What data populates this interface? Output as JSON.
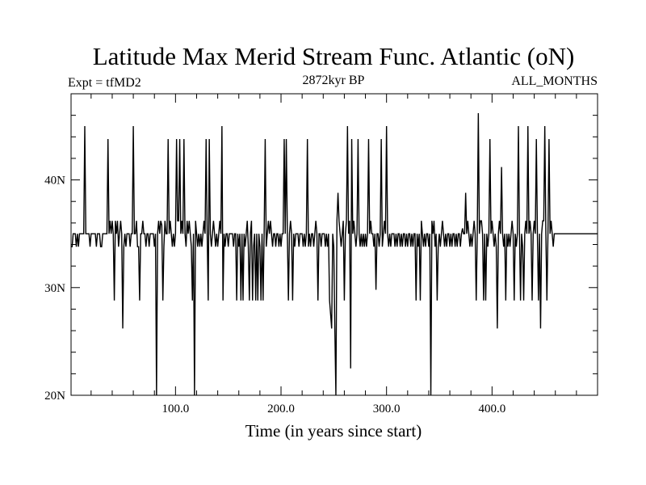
{
  "chart_data": {
    "type": "line",
    "title": "Latitude Max Merid Stream Func. Atlantic (oN)",
    "subtitle_left": "Expt = tfMD2",
    "subtitle_center": "2872kyr BP",
    "subtitle_right": "ALL_MONTHS",
    "xlabel": "Time (in years since start)",
    "ylabel": "",
    "xlim": [
      1,
      500
    ],
    "ylim": [
      20,
      48
    ],
    "x_ticks": [
      100,
      200,
      300,
      400
    ],
    "x_tick_labels": [
      "100.0",
      "200.0",
      "300.0",
      "400.0"
    ],
    "y_ticks": [
      20,
      30,
      40
    ],
    "y_tick_labels": [
      "20N",
      "30N",
      "40N"
    ],
    "line_color": "#000000",
    "grid": false,
    "series": [
      {
        "x_start": 1,
        "x_step": 1,
        "baseline": 35,
        "events": [
          [
            1,
            33.8
          ],
          [
            2,
            33.8
          ],
          [
            6,
            33.8
          ],
          [
            8,
            33.8
          ],
          [
            14,
            45
          ],
          [
            19,
            33.8
          ],
          [
            25,
            33.8
          ],
          [
            29,
            33.8
          ],
          [
            30,
            33.8
          ],
          [
            36,
            43.8
          ],
          [
            38,
            36.2
          ],
          [
            40,
            36.2
          ],
          [
            42,
            28.8
          ],
          [
            43,
            36.2
          ],
          [
            45,
            36.2
          ],
          [
            46,
            33.8
          ],
          [
            48,
            36.2
          ],
          [
            50,
            26.2
          ],
          [
            51,
            33.8
          ],
          [
            53,
            33.8
          ],
          [
            57,
            33.8
          ],
          [
            60,
            45
          ],
          [
            63,
            36.2
          ],
          [
            64,
            33.8
          ],
          [
            65,
            33.8
          ],
          [
            66,
            28.8
          ],
          [
            69,
            36.2
          ],
          [
            72,
            33.8
          ],
          [
            75,
            33.8
          ],
          [
            80,
            33.8
          ],
          [
            82,
            20
          ],
          [
            84,
            36.2
          ],
          [
            86,
            36.2
          ],
          [
            87,
            35.8
          ],
          [
            88,
            28.8
          ],
          [
            89,
            33.8
          ],
          [
            90,
            36.2
          ],
          [
            93,
            43.8
          ],
          [
            95,
            36.2
          ],
          [
            97,
            33.8
          ],
          [
            99,
            33.8
          ],
          [
            101,
            43.8
          ],
          [
            102,
            36.2
          ],
          [
            103,
            36.2
          ],
          [
            104,
            43.8
          ],
          [
            106,
            36.2
          ],
          [
            108,
            43.8
          ],
          [
            110,
            33.8
          ],
          [
            111,
            36.2
          ],
          [
            113,
            36.2
          ],
          [
            115,
            33.8
          ],
          [
            116,
            28.8
          ],
          [
            118,
            20
          ],
          [
            119,
            36.2
          ],
          [
            121,
            33.8
          ],
          [
            123,
            33.8
          ],
          [
            125,
            33.8
          ],
          [
            127,
            36.2
          ],
          [
            129,
            43.8
          ],
          [
            131,
            28.8
          ],
          [
            132,
            43.8
          ],
          [
            134,
            33.8
          ],
          [
            136,
            36.2
          ],
          [
            138,
            33.8
          ],
          [
            140,
            33.8
          ],
          [
            142,
            36.2
          ],
          [
            144,
            45
          ],
          [
            145,
            28.8
          ],
          [
            147,
            33.8
          ],
          [
            150,
            33.8
          ],
          [
            155,
            33.8
          ],
          [
            158,
            28.8
          ],
          [
            160,
            33.8
          ],
          [
            162,
            28.8
          ],
          [
            164,
            28.8
          ],
          [
            166,
            33.8
          ],
          [
            168,
            36.2
          ],
          [
            169,
            33.8
          ],
          [
            170,
            28.8
          ],
          [
            172,
            36.2
          ],
          [
            173,
            28.8
          ],
          [
            174,
            33.8
          ],
          [
            176,
            28.8
          ],
          [
            178,
            28.8
          ],
          [
            180,
            33.8
          ],
          [
            181,
            28.8
          ],
          [
            183,
            28.8
          ],
          [
            185,
            43.8
          ],
          [
            186,
            33.8
          ],
          [
            188,
            36.2
          ],
          [
            190,
            36.2
          ],
          [
            192,
            33.8
          ],
          [
            195,
            33.8
          ],
          [
            198,
            33.8
          ],
          [
            200,
            33.8
          ],
          [
            203,
            43.8
          ],
          [
            205,
            43.8
          ],
          [
            207,
            28.8
          ],
          [
            209,
            36.2
          ],
          [
            211,
            28.8
          ],
          [
            213,
            33.8
          ],
          [
            217,
            33.8
          ],
          [
            221,
            33.8
          ],
          [
            223,
            33.8
          ],
          [
            225,
            43.8
          ],
          [
            226,
            33.8
          ],
          [
            228,
            33.8
          ],
          [
            231,
            33.8
          ],
          [
            233,
            36.2
          ],
          [
            235,
            28.8
          ],
          [
            238,
            33.8
          ],
          [
            242,
            33.8
          ],
          [
            244,
            33.8
          ],
          [
            246,
            28.8
          ],
          [
            247,
            27.5
          ],
          [
            248,
            26.2
          ],
          [
            250,
            33.8
          ],
          [
            251,
            26.2
          ],
          [
            252,
            20
          ],
          [
            253,
            36.2
          ],
          [
            254,
            38.8
          ],
          [
            255,
            36.2
          ],
          [
            257,
            33.8
          ],
          [
            259,
            36.2
          ],
          [
            260,
            28.8
          ],
          [
            262,
            36.2
          ],
          [
            263,
            45
          ],
          [
            265,
            36.2
          ],
          [
            266,
            22.5
          ],
          [
            267,
            43.8
          ],
          [
            269,
            36.2
          ],
          [
            271,
            33.8
          ],
          [
            273,
            43.8
          ],
          [
            275,
            33.8
          ],
          [
            277,
            33.8
          ],
          [
            279,
            33.8
          ],
          [
            281,
            33.8
          ],
          [
            283,
            43.8
          ],
          [
            285,
            36.2
          ],
          [
            288,
            33.8
          ],
          [
            290,
            29.8
          ],
          [
            293,
            33.8
          ],
          [
            295,
            43.8
          ],
          [
            296,
            33.8
          ],
          [
            298,
            36.2
          ],
          [
            300,
            45
          ],
          [
            302,
            33.8
          ],
          [
            304,
            33.8
          ],
          [
            308,
            33.8
          ],
          [
            310,
            33.8
          ],
          [
            313,
            33.8
          ],
          [
            315,
            33.8
          ],
          [
            318,
            33.8
          ],
          [
            320,
            33.8
          ],
          [
            323,
            33.8
          ],
          [
            325,
            33.8
          ],
          [
            328,
            28.8
          ],
          [
            330,
            33.8
          ],
          [
            332,
            28.8
          ],
          [
            333,
            36.2
          ],
          [
            335,
            33.8
          ],
          [
            337,
            33.8
          ],
          [
            340,
            33.8
          ],
          [
            342,
            20
          ],
          [
            343,
            36.2
          ],
          [
            345,
            36.2
          ],
          [
            346,
            33.8
          ],
          [
            348,
            28.8
          ],
          [
            349,
            33.8
          ],
          [
            351,
            33.8
          ],
          [
            353,
            36.2
          ],
          [
            355,
            33.8
          ],
          [
            357,
            33.8
          ],
          [
            360,
            33.8
          ],
          [
            362,
            33.8
          ],
          [
            365,
            33.8
          ],
          [
            367,
            33.8
          ],
          [
            370,
            33.8
          ],
          [
            372,
            35.5
          ],
          [
            375,
            38.8
          ],
          [
            377,
            36.2
          ],
          [
            379,
            33.8
          ],
          [
            381,
            33.8
          ],
          [
            383,
            36.2
          ],
          [
            385,
            28.8
          ],
          [
            387,
            46.2
          ],
          [
            389,
            36.2
          ],
          [
            390,
            36.2
          ],
          [
            392,
            28.8
          ],
          [
            394,
            28.8
          ],
          [
            396,
            33.8
          ],
          [
            398,
            43.8
          ],
          [
            400,
            36.2
          ],
          [
            402,
            33.8
          ],
          [
            404,
            33.8
          ],
          [
            405,
            26.2
          ],
          [
            407,
            36.2
          ],
          [
            409,
            41.2
          ],
          [
            411,
            33.8
          ],
          [
            413,
            28.8
          ],
          [
            415,
            33.8
          ],
          [
            417,
            33.8
          ],
          [
            419,
            36.2
          ],
          [
            421,
            28.8
          ],
          [
            423,
            33.8
          ],
          [
            425,
            45
          ],
          [
            427,
            28.8
          ],
          [
            429,
            33.8
          ],
          [
            430,
            28.8
          ],
          [
            432,
            36.2
          ],
          [
            434,
            45
          ],
          [
            436,
            36.2
          ],
          [
            438,
            28.8
          ],
          [
            440,
            36.2
          ],
          [
            442,
            43.8
          ],
          [
            444,
            28.8
          ],
          [
            446,
            26.2
          ],
          [
            448,
            36.2
          ],
          [
            449,
            36.2
          ],
          [
            450,
            45
          ],
          [
            452,
            28.8
          ],
          [
            454,
            43.8
          ],
          [
            456,
            36.2
          ],
          [
            458,
            33.8
          ]
        ]
      }
    ]
  }
}
